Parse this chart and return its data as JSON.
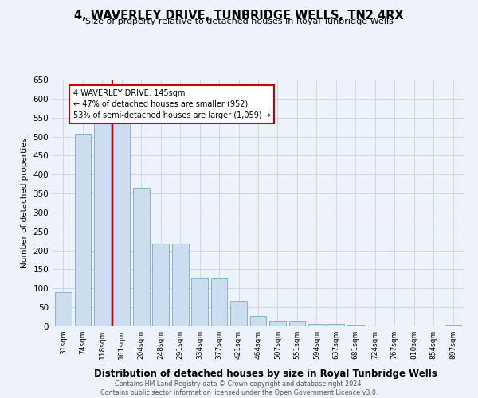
{
  "title": "4, WAVERLEY DRIVE, TUNBRIDGE WELLS, TN2 4RX",
  "subtitle": "Size of property relative to detached houses in Royal Tunbridge Wells",
  "xlabel": "Distribution of detached houses by size in Royal Tunbridge Wells",
  "ylabel": "Number of detached properties",
  "footer_line1": "Contains HM Land Registry data © Crown copyright and database right 2024.",
  "footer_line2": "Contains public sector information licensed under the Open Government Licence v3.0.",
  "annotation_line1": "4 WAVERLEY DRIVE: 145sqm",
  "annotation_line2": "← 47% of detached houses are smaller (952)",
  "annotation_line3": "53% of semi-detached houses are larger (1,059) →",
  "bar_color": "#ccddf0",
  "bar_edge_color": "#7aaac8",
  "property_line_color": "#cc0000",
  "annotation_box_edgecolor": "#cc0000",
  "background_color": "#eef2fb",
  "grid_color": "#c0cce0",
  "categories": [
    "31sqm",
    "74sqm",
    "118sqm",
    "161sqm",
    "204sqm",
    "248sqm",
    "291sqm",
    "334sqm",
    "377sqm",
    "421sqm",
    "464sqm",
    "507sqm",
    "551sqm",
    "594sqm",
    "637sqm",
    "681sqm",
    "724sqm",
    "767sqm",
    "810sqm",
    "854sqm",
    "897sqm"
  ],
  "values": [
    90,
    507,
    537,
    537,
    365,
    218,
    218,
    128,
    128,
    67,
    28,
    14,
    14,
    7,
    7,
    5,
    2,
    2,
    1,
    1,
    5
  ],
  "ylim": [
    0,
    650
  ],
  "yticks": [
    0,
    50,
    100,
    150,
    200,
    250,
    300,
    350,
    400,
    450,
    500,
    550,
    600,
    650
  ],
  "property_line_x": 3.0,
  "property_size": 145
}
